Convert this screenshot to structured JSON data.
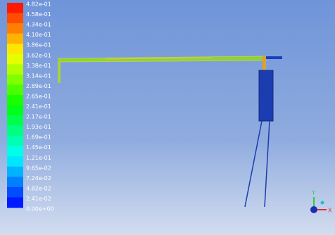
{
  "legend": {
    "labels": [
      "4.82e-01",
      "4.58e-01",
      "4.34e-01",
      "4.10e-01",
      "3.86e-01",
      "3.62e-01",
      "3.38e-01",
      "3.14e-01",
      "2.89e-01",
      "2.65e-01",
      "2.41e-01",
      "2.17e-01",
      "1.93e-01",
      "1.69e-01",
      "1.45e-01",
      "1.21e-01",
      "9.65e-02",
      "7.24e-02",
      "4.82e-02",
      "2.41e-02",
      "0.00e+00"
    ]
  },
  "axes": {
    "x": "X",
    "y": "Y"
  }
}
